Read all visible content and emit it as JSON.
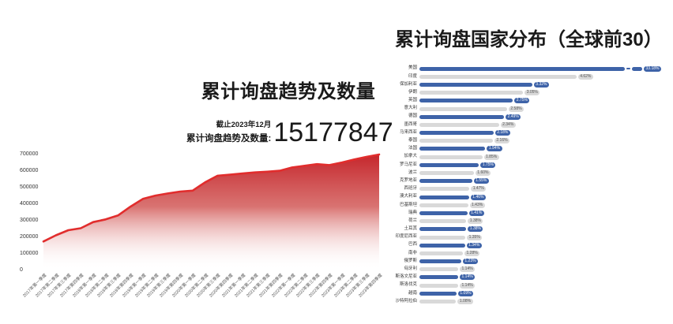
{
  "left_chart": {
    "title": "累计询盘趋势及数量",
    "annotation": {
      "asof": "截止2023年12月",
      "label": "累计询盘趋势及数量:",
      "value": "15177847"
    },
    "chart_data": {
      "type": "area",
      "title": "累计询盘趋势及数量",
      "xlabel": "",
      "ylabel": "",
      "grid": false,
      "legend": false,
      "ylim": [
        0,
        700000
      ],
      "yticks": [
        0,
        100000,
        200000,
        300000,
        400000,
        500000,
        600000,
        700000
      ],
      "x": [
        "2017年第一季度",
        "2017年第二季度",
        "2017年第三季度",
        "2017年第四季度",
        "2018年第一季度",
        "2018年第二季度",
        "2018年第三季度",
        "2018年第四季度",
        "2019年第一季度",
        "2019年第二季度",
        "2019年第三季度",
        "2019年第四季度",
        "2020年第一季度",
        "2020年第二季度",
        "2020年第三季度",
        "2020年第四季度",
        "2021年第一季度",
        "2021年第二季度",
        "2021年第三季度",
        "2021年第四季度",
        "2022年第一季度",
        "2022年第二季度",
        "2022年第三季度",
        "2022年第四季度",
        "2023年第一季度",
        "2023年第二季度",
        "2023年第三季度",
        "2023年第四季度"
      ],
      "values": [
        175000,
        212000,
        243000,
        255000,
        292000,
        308000,
        332000,
        385000,
        432000,
        452000,
        465000,
        476000,
        482000,
        532000,
        572000,
        578000,
        585000,
        592000,
        596000,
        602000,
        622000,
        632000,
        642000,
        636000,
        652000,
        670000,
        686000,
        700000
      ],
      "line_color": "#e12d2d",
      "area_top_color": "#c5262c",
      "area_mid_color": "#d25a58",
      "area_bottom_color": "#ffffff"
    }
  },
  "right_chart": {
    "title": "累计询盘国家分布（全球前30）",
    "chart_data": {
      "type": "bar",
      "orientation": "horizontal",
      "row_color_pattern": "alternating",
      "bar_color_primary": "#3e63a8",
      "bar_color_secondary": "#d9d9d9",
      "pill_text_on_primary": "#ffffff",
      "pill_text_on_secondary": "#555555",
      "axis_break_on_first_bar": true,
      "categories": [
        "美国",
        "印度",
        "保加利亚",
        "伊朗",
        "英国",
        "意大利",
        "德国",
        "墨西哥",
        "马来西亚",
        "泰国",
        "法国",
        "加拿大",
        "罗马尼亚",
        "波兰",
        "克罗地亚",
        "西班牙",
        "澳大利亚",
        "巴基斯坦",
        "瑞典",
        "荷兰",
        "土耳其",
        "印度尼西亚",
        "巴西",
        "南非",
        "俄罗斯",
        "匈牙利",
        "斯洛文尼亚",
        "斯洛伐克",
        "越南",
        "沙特阿拉伯"
      ],
      "values": [
        33.18,
        4.62,
        3.32,
        3.05,
        2.75,
        2.58,
        2.49,
        2.34,
        2.18,
        2.16,
        1.94,
        1.85,
        1.75,
        1.6,
        1.55,
        1.47,
        1.46,
        1.43,
        1.41,
        1.38,
        1.38,
        1.35,
        1.34,
        1.28,
        1.23,
        1.14,
        1.14,
        1.14,
        1.09,
        1.08
      ],
      "value_labels": [
        "33.18%",
        "4.62%",
        "3.32%",
        "3.05%",
        "2.75%",
        "2.58%",
        "2.49%",
        "2.34%",
        "2.18%",
        "2.16%",
        "1.94%",
        "1.85%",
        "1.75%",
        "1.60%",
        "1.55%",
        "1.47%",
        "1.46%",
        "1.43%",
        "1.41%",
        "1.38%",
        "1.38%",
        "1.35%",
        "1.34%",
        "1.28%",
        "1.23%",
        "1.14%",
        "1.14%",
        "1.14%",
        "1.09%",
        "1.08%"
      ]
    }
  }
}
